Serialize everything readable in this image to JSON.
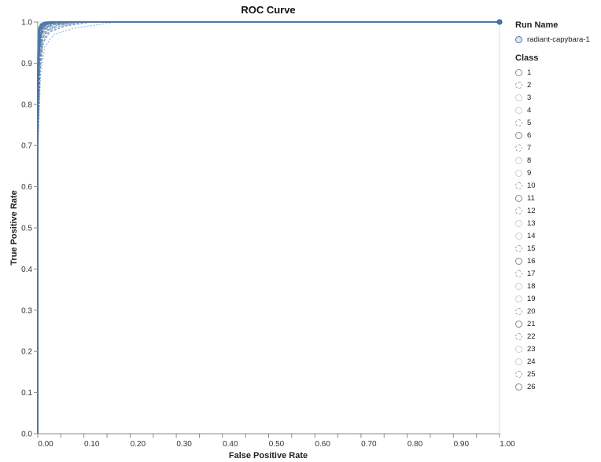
{
  "chart_data": {
    "type": "line",
    "title": "ROC Curve",
    "xlabel": "False Positive Rate",
    "ylabel": "True Positive Rate",
    "xlim": [
      0,
      1
    ],
    "ylim": [
      0,
      1
    ],
    "x_ticks": [
      "0.00",
      "0.10",
      "0.20",
      "0.30",
      "0.40",
      "0.50",
      "0.60",
      "0.70",
      "0.80",
      "0.90",
      "1.00"
    ],
    "y_ticks": [
      "0.0",
      "0.1",
      "0.2",
      "0.3",
      "0.4",
      "0.5",
      "0.6",
      "0.7",
      "0.8",
      "0.9",
      "1.0"
    ],
    "grid": false,
    "color": "#4c78a8",
    "legend_position": "right",
    "legend_run_title": "Run Name",
    "legend_class_title": "Class",
    "run_name": "radiant-capybara-1",
    "classes": [
      "1",
      "2",
      "3",
      "4",
      "5",
      "6",
      "7",
      "8",
      "9",
      "10",
      "11",
      "12",
      "13",
      "14",
      "15",
      "16",
      "17",
      "18",
      "19",
      "20",
      "21",
      "22",
      "23",
      "24",
      "25",
      "26"
    ],
    "series": [
      {
        "name": "1",
        "x": [
          0,
          0,
          0.002,
          0.005,
          0.01,
          0.02,
          0.04,
          1.0
        ],
        "y": [
          0,
          0.7,
          0.9,
          0.96,
          0.985,
          0.995,
          1.0,
          1.0
        ]
      },
      {
        "name": "2",
        "x": [
          0,
          0,
          0.003,
          0.008,
          0.015,
          0.03,
          0.06,
          1.0
        ],
        "y": [
          0,
          0.75,
          0.92,
          0.97,
          0.985,
          0.995,
          1.0,
          1.0
        ]
      },
      {
        "name": "3",
        "x": [
          0,
          0,
          0.002,
          0.006,
          0.012,
          0.025,
          0.05,
          1.0
        ],
        "y": [
          0,
          0.8,
          0.93,
          0.975,
          0.99,
          0.997,
          1.0,
          1.0
        ]
      },
      {
        "name": "4",
        "x": [
          0,
          0,
          0.004,
          0.01,
          0.02,
          0.05,
          0.1,
          1.0
        ],
        "y": [
          0,
          0.72,
          0.9,
          0.96,
          0.98,
          0.99,
          1.0,
          1.0
        ]
      },
      {
        "name": "5",
        "x": [
          0,
          0,
          0.003,
          0.007,
          0.015,
          0.03,
          0.07,
          1.0
        ],
        "y": [
          0,
          0.78,
          0.92,
          0.97,
          0.985,
          0.995,
          1.0,
          1.0
        ]
      },
      {
        "name": "6",
        "x": [
          0,
          0,
          0.001,
          0.003,
          0.008,
          0.015,
          0.03,
          1.0
        ],
        "y": [
          0,
          0.85,
          0.95,
          0.985,
          0.995,
          0.999,
          1.0,
          1.0
        ]
      },
      {
        "name": "7",
        "x": [
          0,
          0,
          0.005,
          0.012,
          0.025,
          0.06,
          0.12,
          1.0
        ],
        "y": [
          0,
          0.7,
          0.88,
          0.95,
          0.975,
          0.99,
          1.0,
          1.0
        ]
      },
      {
        "name": "8",
        "x": [
          0,
          0,
          0.006,
          0.015,
          0.035,
          0.08,
          0.17,
          1.0
        ],
        "y": [
          0,
          0.68,
          0.87,
          0.94,
          0.97,
          0.985,
          1.0,
          1.0
        ]
      },
      {
        "name": "9",
        "x": [
          0,
          0,
          0.002,
          0.005,
          0.01,
          0.02,
          0.04,
          1.0
        ],
        "y": [
          0,
          0.82,
          0.94,
          0.98,
          0.99,
          0.998,
          1.0,
          1.0
        ]
      },
      {
        "name": "10",
        "x": [
          0,
          0,
          0.003,
          0.009,
          0.02,
          0.04,
          0.08,
          1.0
        ],
        "y": [
          0,
          0.76,
          0.91,
          0.965,
          0.985,
          0.995,
          1.0,
          1.0
        ]
      },
      {
        "name": "11",
        "x": [
          0,
          0,
          0.002,
          0.004,
          0.009,
          0.02,
          0.035,
          1.0
        ],
        "y": [
          0,
          0.83,
          0.94,
          0.98,
          0.992,
          0.998,
          1.0,
          1.0
        ]
      },
      {
        "name": "12",
        "x": [
          0,
          0,
          0.004,
          0.01,
          0.022,
          0.045,
          0.09,
          1.0
        ],
        "y": [
          0,
          0.74,
          0.9,
          0.96,
          0.98,
          0.993,
          1.0,
          1.0
        ]
      },
      {
        "name": "13",
        "x": [
          0,
          0,
          0.003,
          0.008,
          0.018,
          0.035,
          0.07,
          1.0
        ],
        "y": [
          0,
          0.77,
          0.92,
          0.97,
          0.985,
          0.995,
          1.0,
          1.0
        ]
      },
      {
        "name": "14",
        "x": [
          0,
          0,
          0.002,
          0.006,
          0.013,
          0.028,
          0.055,
          1.0
        ],
        "y": [
          0,
          0.8,
          0.93,
          0.975,
          0.99,
          0.997,
          1.0,
          1.0
        ]
      },
      {
        "name": "15",
        "x": [
          0,
          0,
          0.005,
          0.011,
          0.024,
          0.05,
          0.1,
          1.0
        ],
        "y": [
          0,
          0.73,
          0.89,
          0.955,
          0.978,
          0.992,
          1.0,
          1.0
        ]
      },
      {
        "name": "16",
        "x": [
          0,
          0,
          0.001,
          0.004,
          0.009,
          0.018,
          0.035,
          1.0
        ],
        "y": [
          0,
          0.84,
          0.95,
          0.982,
          0.994,
          0.998,
          1.0,
          1.0
        ]
      },
      {
        "name": "17",
        "x": [
          0,
          0,
          0.003,
          0.007,
          0.016,
          0.032,
          0.065,
          1.0
        ],
        "y": [
          0,
          0.79,
          0.92,
          0.97,
          0.987,
          0.996,
          1.0,
          1.0
        ]
      },
      {
        "name": "18",
        "x": [
          0,
          0,
          0.004,
          0.009,
          0.02,
          0.04,
          0.085,
          1.0
        ],
        "y": [
          0,
          0.75,
          0.9,
          0.962,
          0.982,
          0.994,
          1.0,
          1.0
        ]
      },
      {
        "name": "19",
        "x": [
          0,
          0,
          0.002,
          0.005,
          0.011,
          0.022,
          0.045,
          1.0
        ],
        "y": [
          0,
          0.81,
          0.935,
          0.978,
          0.991,
          0.997,
          1.0,
          1.0
        ]
      },
      {
        "name": "20",
        "x": [
          0,
          0,
          0.003,
          0.008,
          0.017,
          0.034,
          0.068,
          1.0
        ],
        "y": [
          0,
          0.78,
          0.918,
          0.968,
          0.986,
          0.995,
          1.0,
          1.0
        ]
      },
      {
        "name": "21",
        "x": [
          0,
          0,
          0.001,
          0.003,
          0.007,
          0.015,
          0.03,
          1.0
        ],
        "y": [
          0,
          0.86,
          0.955,
          0.986,
          0.995,
          0.999,
          1.0,
          1.0
        ]
      },
      {
        "name": "22",
        "x": [
          0,
          0,
          0.005,
          0.012,
          0.026,
          0.055,
          0.11,
          1.0
        ],
        "y": [
          0,
          0.71,
          0.885,
          0.952,
          0.976,
          0.99,
          1.0,
          1.0
        ]
      },
      {
        "name": "23",
        "x": [
          0,
          0,
          0.002,
          0.006,
          0.014,
          0.029,
          0.058,
          1.0
        ],
        "y": [
          0,
          0.8,
          0.928,
          0.974,
          0.989,
          0.996,
          1.0,
          1.0
        ]
      },
      {
        "name": "24",
        "x": [
          0,
          0,
          0.003,
          0.008,
          0.018,
          0.036,
          0.072,
          1.0
        ],
        "y": [
          0,
          0.77,
          0.915,
          0.966,
          0.985,
          0.994,
          1.0,
          1.0
        ]
      },
      {
        "name": "25",
        "x": [
          0,
          0,
          0.004,
          0.01,
          0.021,
          0.043,
          0.088,
          1.0
        ],
        "y": [
          0,
          0.74,
          0.898,
          0.96,
          0.98,
          0.993,
          1.0,
          1.0
        ]
      },
      {
        "name": "26",
        "x": [
          0,
          0,
          0.002,
          0.004,
          0.01,
          0.02,
          0.04,
          1.0
        ],
        "y": [
          0,
          0.82,
          0.94,
          0.979,
          0.992,
          0.998,
          1.0,
          1.0
        ]
      }
    ]
  }
}
